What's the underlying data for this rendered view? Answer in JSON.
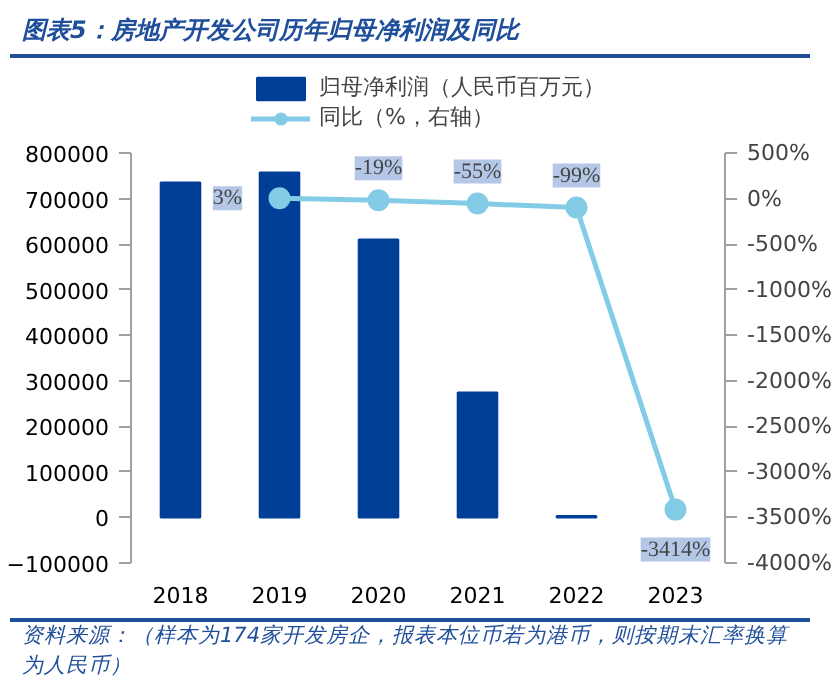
{
  "chart_data": {
    "type": "bar",
    "title": "图表5：房地产开发公司历年归母净利润及同比",
    "categories": [
      "2018",
      "2019",
      "2020",
      "2021",
      "2022",
      "2023"
    ],
    "series": [
      {
        "name": "归母净利润（人民币百万元）",
        "color": "#003f98",
        "values": [
          735000,
          757000,
          610000,
          274000,
          3000,
          null
        ]
      },
      {
        "name": "同比（%，右轴）",
        "type": "line",
        "axis": "y2",
        "color": "#84cbe6",
        "marker": "circle",
        "values": [
          null,
          3,
          -19,
          -55,
          -99,
          -3414
        ],
        "value_labels": [
          null,
          "3%",
          "-19%",
          "-55%",
          "-99%",
          "-3414%"
        ]
      }
    ],
    "ylim": [
      -100000,
      800000
    ],
    "yticks": [
      -100000,
      0,
      100000,
      200000,
      300000,
      400000,
      500000,
      600000,
      700000,
      800000
    ],
    "y2lim": [
      -4000,
      500
    ],
    "y2ticks": [
      {
        "value": -4000,
        "label": "-4000%"
      },
      {
        "value": -3500,
        "label": "-3500%"
      },
      {
        "value": -3000,
        "label": "-3000%"
      },
      {
        "value": -2500,
        "label": "-2500%"
      },
      {
        "value": -2000,
        "label": "-2000%"
      },
      {
        "value": -1500,
        "label": "-1500%"
      },
      {
        "value": -1000,
        "label": "-1000%"
      },
      {
        "value": -500,
        "label": "-500%"
      },
      {
        "value": 0,
        "label": "0%"
      },
      {
        "value": 500,
        "label": "500%"
      }
    ],
    "grid": false,
    "legend": "top",
    "annotations": [
      "资料来源：（样本为174家开发房企，报表本位币若为港币，则按期末汇率换算为人民币）"
    ]
  }
}
